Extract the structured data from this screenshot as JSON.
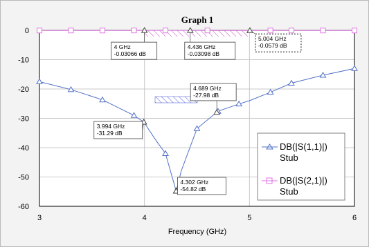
{
  "chart_data": {
    "type": "line",
    "title": "Graph 1",
    "xlabel": "Frequency (GHz)",
    "ylabel": "",
    "xlim": [
      3,
      6
    ],
    "ylim": [
      -60,
      0
    ],
    "x_ticks": [
      "3",
      "4",
      "5",
      "6"
    ],
    "y_ticks": [
      "0",
      "-10",
      "-20",
      "-30",
      "-40",
      "-50",
      "-60"
    ],
    "grid": true,
    "legend_position": "bottom-right",
    "series": [
      {
        "name": "DB(|S(1,1)|)",
        "name_line2": "Stub",
        "color": "#5070c8",
        "marker": "triangle",
        "x": [
          3.0,
          3.3,
          3.6,
          3.9,
          3.994,
          4.1,
          4.2,
          4.302,
          4.35,
          4.5,
          4.7,
          4.9,
          5.0,
          5.2,
          5.4,
          5.7,
          6.0
        ],
        "y": [
          -17.5,
          -20.2,
          -23.7,
          -29.0,
          -31.29,
          -37.0,
          -42.0,
          -54.82,
          -48.0,
          -33.5,
          -27.6,
          -25.1,
          -24.0,
          -21.1,
          -18.0,
          -15.3,
          -13.0
        ],
        "marker_x": [
          3.0,
          3.3,
          3.6,
          3.9,
          3.994,
          4.2,
          4.302,
          4.5,
          4.7,
          4.9,
          5.2,
          5.4,
          5.7,
          6.0
        ]
      },
      {
        "name": "DB(|S(2,1)|)",
        "name_line2": "Stub",
        "color": "#e070e0",
        "marker": "square",
        "x": [
          3.0,
          3.3,
          3.6,
          3.9,
          4.0,
          4.2,
          4.436,
          4.6,
          4.8,
          5.004,
          5.2,
          5.4,
          5.6,
          5.8,
          6.0
        ],
        "y": [
          -0.05,
          -0.05,
          -0.05,
          -0.04,
          -0.03066,
          -0.03,
          -0.03098,
          -0.04,
          -0.05,
          -0.0579,
          -0.05,
          -0.05,
          -0.05,
          -0.05,
          -0.05
        ],
        "marker_x": [
          3.0,
          3.3,
          3.6,
          3.9,
          4.2,
          4.6,
          5.2,
          5.4,
          5.7,
          6.0
        ]
      }
    ],
    "markers": [
      {
        "x": 4.0,
        "y": -0.03066,
        "freq": "4 GHz",
        "val": "-0.03066 dB",
        "series": 1
      },
      {
        "x": 4.436,
        "y": -0.03098,
        "freq": "4.436 GHz",
        "val": "-0.03098 dB",
        "series": 1
      },
      {
        "x": 5.004,
        "y": -0.0579,
        "freq": "5.004 GHz",
        "val": "-0.0579 dB",
        "series": 1
      },
      {
        "x": 4.689,
        "y": -27.98,
        "freq": "4.689 GHz",
        "val": "-27.98 dB",
        "series": 0
      },
      {
        "x": 3.994,
        "y": -31.29,
        "freq": "3.994 GHz",
        "val": "-31.29 dB",
        "series": 0
      },
      {
        "x": 4.302,
        "y": -54.82,
        "freq": "4.302 GHz",
        "val": "-54.82 dB",
        "series": 0
      }
    ]
  }
}
